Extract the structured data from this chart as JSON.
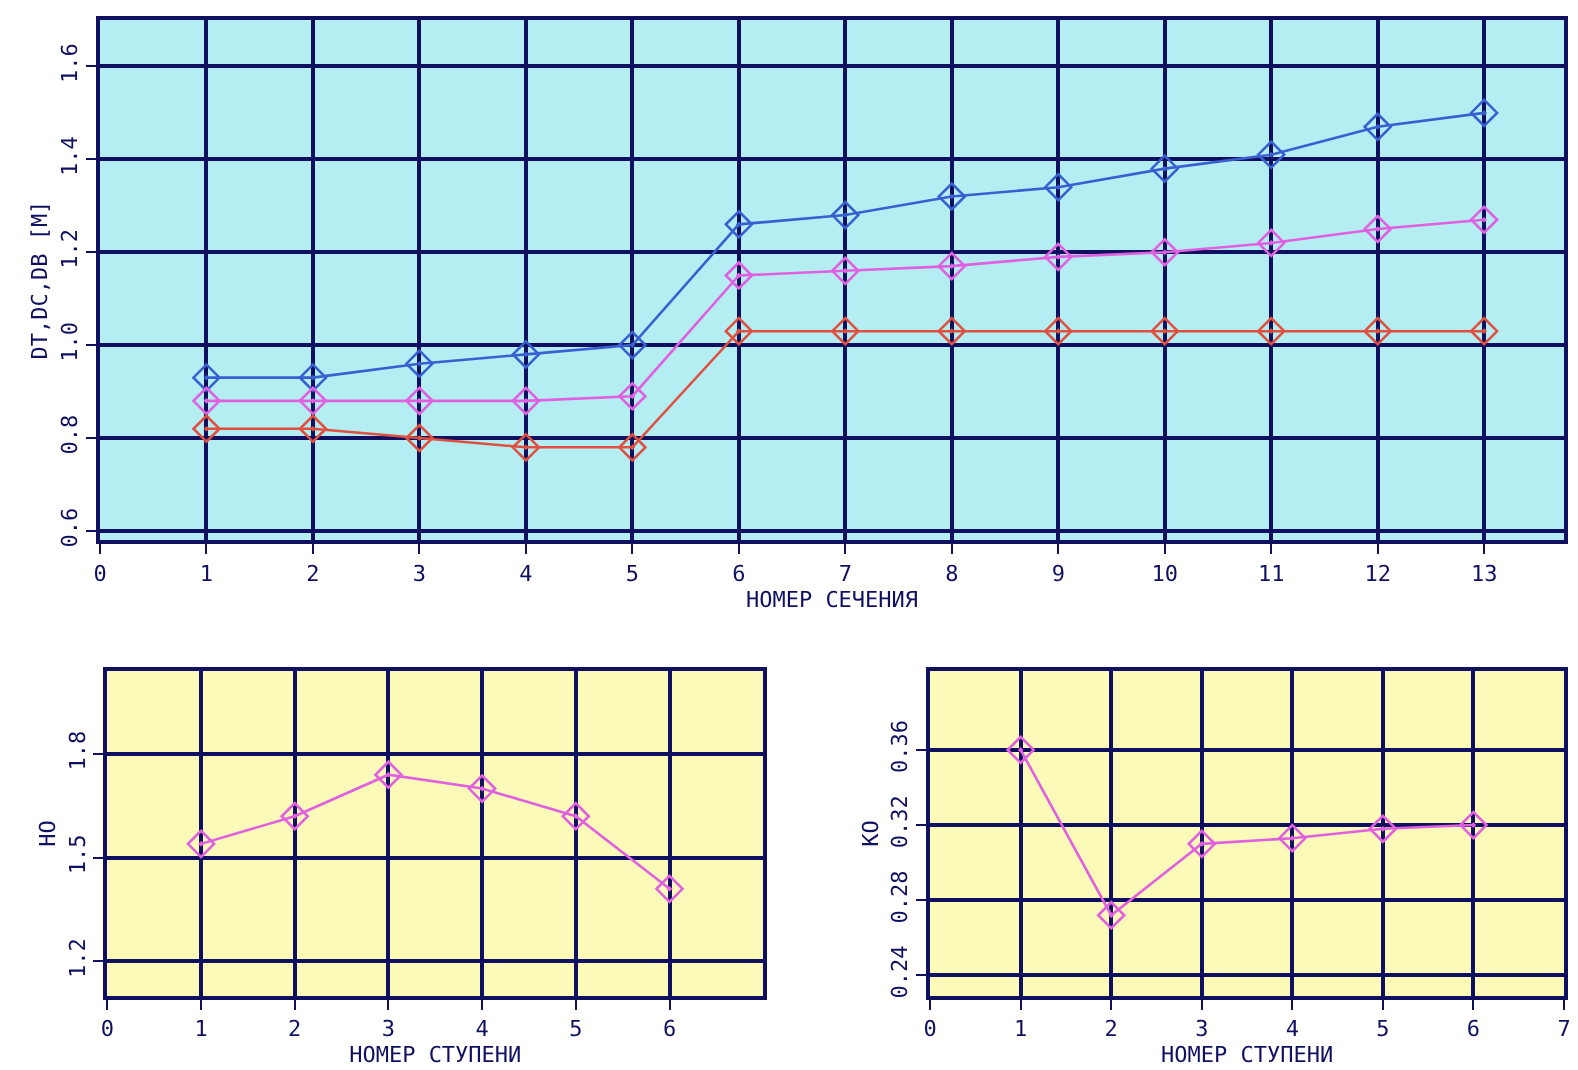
{
  "chart_data": [
    {
      "type": "line",
      "xlabel": "НОМЕР СЕЧЕНИЯ",
      "ylabel": "DT,DC,DB [M]",
      "x": [
        1,
        2,
        3,
        4,
        5,
        6,
        7,
        8,
        9,
        10,
        11,
        12,
        13
      ],
      "series": [
        {
          "color": "#3a5fd0",
          "values": [
            0.93,
            0.93,
            0.96,
            0.98,
            1.0,
            1.26,
            1.28,
            1.32,
            1.34,
            1.38,
            1.41,
            1.47,
            1.5
          ]
        },
        {
          "color": "#e060e0",
          "values": [
            0.88,
            0.88,
            0.88,
            0.88,
            0.89,
            1.15,
            1.16,
            1.17,
            1.19,
            1.2,
            1.22,
            1.25,
            1.27
          ]
        },
        {
          "color": "#e05040",
          "values": [
            0.82,
            0.82,
            0.8,
            0.78,
            0.78,
            1.03,
            1.03,
            1.03,
            1.03,
            1.03,
            1.03,
            1.03,
            1.03
          ]
        }
      ],
      "xlim": [
        0,
        13.75
      ],
      "xticks": [
        0,
        1,
        2,
        3,
        4,
        5,
        6,
        7,
        8,
        9,
        10,
        11,
        12,
        13
      ],
      "ylim": [
        0.58,
        1.7
      ],
      "yticks": [
        0.6,
        0.8,
        {
          "value": 1,
          "label": "1.0"
        },
        1.2,
        1.4,
        1.6
      ],
      "grid": true,
      "marker": "diamond",
      "line_style": "solid"
    },
    {
      "type": "line",
      "xlabel": "НОМЕР СТУПЕНИ",
      "ylabel": "НО",
      "x": [
        1,
        2,
        3,
        4,
        5,
        6
      ],
      "series": [
        {
          "color": "#e060e0",
          "values": [
            1.54,
            1.62,
            1.74,
            1.7,
            1.62,
            1.41
          ]
        }
      ],
      "xlim": [
        0,
        7
      ],
      "xticks": [
        0,
        1,
        2,
        3,
        4,
        5,
        6
      ],
      "ylim": [
        1.1,
        2.04
      ],
      "yticks": [
        1.2,
        1.5,
        1.8
      ],
      "grid": true,
      "marker": "diamond",
      "line_style": "solid"
    },
    {
      "type": "line",
      "xlabel": "НОМЕР СТУПЕНИ",
      "ylabel": "КО",
      "x": [
        1,
        2,
        3,
        4,
        5,
        6
      ],
      "series": [
        {
          "color": "#e060e0",
          "values": [
            0.36,
            0.272,
            0.31,
            0.313,
            0.318,
            0.32
          ]
        }
      ],
      "xlim": [
        0,
        7
      ],
      "xticks": [
        0,
        1,
        2,
        3,
        4,
        5,
        6,
        7
      ],
      "ylim": [
        0.229,
        0.402
      ],
      "yticks": [
        0.24,
        0.28,
        0.32,
        0.36
      ],
      "grid": true,
      "marker": "diamond",
      "line_style": "solid"
    }
  ]
}
